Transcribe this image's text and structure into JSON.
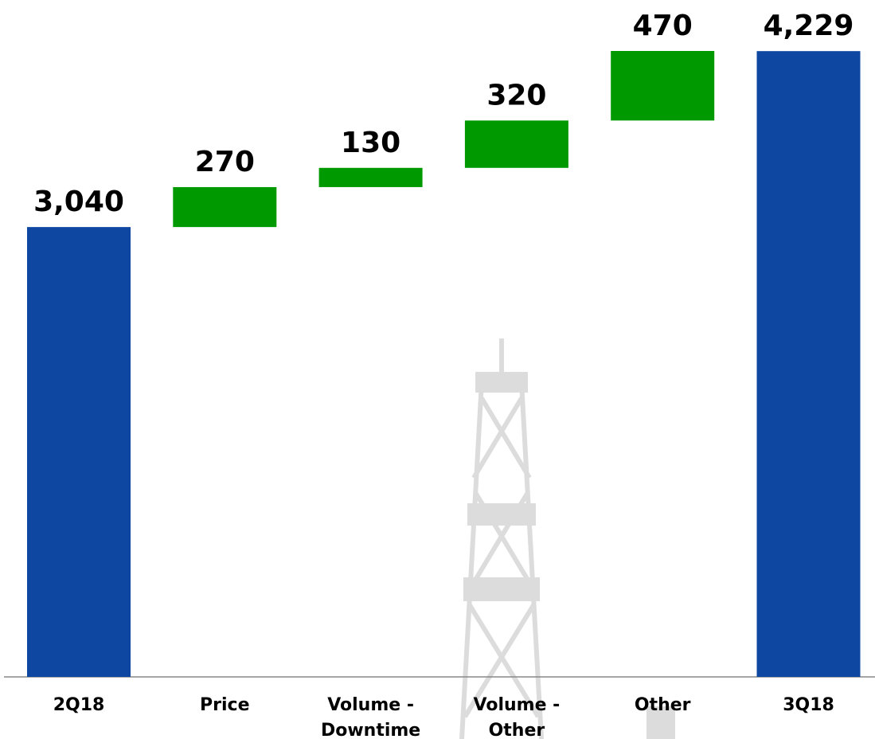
{
  "chart_data": {
    "type": "waterfall",
    "categories": [
      "2Q18",
      "Price",
      "Volume - Downtime",
      "Volume - Other",
      "Other",
      "3Q18"
    ],
    "values": [
      3040,
      270,
      130,
      320,
      470,
      4229
    ],
    "value_labels": [
      "3,040",
      "270",
      "130",
      "320",
      "470",
      "4,229"
    ],
    "measure": [
      "total",
      "relative",
      "relative",
      "relative",
      "relative",
      "total"
    ],
    "colors": [
      "#0d47a1",
      "#009900",
      "#009900",
      "#009900",
      "#009900",
      "#0d47a1"
    ]
  }
}
